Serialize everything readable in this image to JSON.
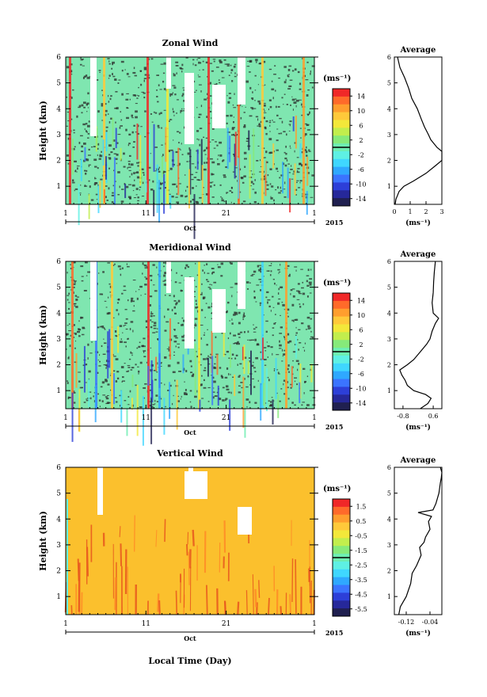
{
  "panels": [
    {
      "title": "Zonal Wind",
      "ylabel": "Height (km)",
      "yticks": [
        "1",
        "2",
        "3",
        "4",
        "5",
        "6"
      ],
      "xticks": [
        "1",
        "11",
        "21",
        "1"
      ],
      "month": "Oct",
      "year": "2015",
      "cbar_unit": "(ms⁻¹)",
      "cbar_ticks": [
        "14",
        "10",
        "6",
        "2",
        "-2",
        "-6",
        "-10",
        "-14"
      ],
      "avg_title": "Average",
      "avg_xticks": [
        "0",
        "1",
        "2",
        "3"
      ],
      "avg_xlabel": "(ms⁻¹)",
      "avg_yticks": [
        "1",
        "2",
        "3",
        "4",
        "5",
        "6"
      ],
      "xlabel": ""
    },
    {
      "title": "Meridional Wind",
      "ylabel": "Height (km)",
      "yticks": [
        "1",
        "2",
        "3",
        "4",
        "5",
        "6"
      ],
      "xticks": [
        "1",
        "11",
        "21",
        "1"
      ],
      "month": "Oct",
      "year": "2015",
      "cbar_unit": "(ms⁻¹)",
      "cbar_ticks": [
        "14",
        "10",
        "6",
        "2",
        "-2",
        "-6",
        "-10",
        "-14"
      ],
      "avg_title": "Average",
      "avg_xticks": [
        "-0.8",
        "0.6"
      ],
      "avg_xlabel": "(ms⁻¹)",
      "avg_yticks": [
        "1",
        "2",
        "3",
        "4",
        "5",
        "6"
      ],
      "xlabel": ""
    },
    {
      "title": "Vertical Wind",
      "ylabel": "Height (km)",
      "yticks": [
        "1",
        "2",
        "3",
        "4",
        "5",
        "6"
      ],
      "xticks": [
        "1",
        "11",
        "21",
        "1"
      ],
      "month": "Oct",
      "year": "2015",
      "cbar_unit": "(ms⁻¹)",
      "cbar_ticks": [
        "1.5",
        "0.5",
        "-0.5",
        "-1.5",
        "-2.5",
        "-3.5",
        "-4.5",
        "-5.5"
      ],
      "avg_title": "Average",
      "avg_xticks": [
        "-0.12",
        "-0.04"
      ],
      "avg_xlabel": "(ms⁻¹)",
      "avg_yticks": [
        "1",
        "2",
        "3",
        "4",
        "5",
        "6"
      ],
      "xlabel": "Local Time (Day)"
    }
  ],
  "colors": {
    "bands": [
      "#f02828",
      "#ff6a2a",
      "#ff9e2e",
      "#ffc93a",
      "#f3e83a",
      "#c2ee4d",
      "#86ea7a",
      "#6eeeb2",
      "#5ef0e4",
      "#3fd7ff",
      "#2fa8ff",
      "#3b74ff",
      "#2d3fd8",
      "#26289a",
      "#202050"
    ],
    "vert_bg": "#fbc02d",
    "speckle": "#2a2a2a"
  },
  "chart_data": [
    {
      "type": "heatmap",
      "title": "Zonal Wind",
      "ylabel": "Height (km)",
      "xaxis": "Oct 2015, days 1 to 31 (ticks 1, 11, 21, 1)",
      "ylim": [
        0.3,
        6
      ],
      "colorbar": {
        "unit": "ms-1",
        "range": [
          -16,
          16
        ],
        "ticks": [
          14,
          10,
          6,
          2,
          -2,
          -6,
          -10,
          -14
        ]
      },
      "average_profile": {
        "title": "Average",
        "xlim": [
          0,
          3
        ],
        "xticks": [
          0,
          1,
          2,
          3
        ],
        "height": [
          0.3,
          0.5,
          0.8,
          1.0,
          1.2,
          1.5,
          1.8,
          2.0,
          2.2,
          2.35,
          2.5,
          2.8,
          3.0,
          3.3,
          3.6,
          4.0,
          4.4,
          4.8,
          5.2,
          5.6,
          6.0
        ],
        "values": [
          0.05,
          0.1,
          0.3,
          0.6,
          1.2,
          2.0,
          2.6,
          3.0,
          3.15,
          3.05,
          2.7,
          2.3,
          2.15,
          1.9,
          1.7,
          1.45,
          1.1,
          0.9,
          0.65,
          0.35,
          0.2
        ]
      }
    },
    {
      "type": "heatmap",
      "title": "Meridional Wind",
      "ylabel": "Height (km)",
      "xaxis": "Oct 2015, days 1 to 31 (ticks 1, 11, 21, 1)",
      "ylim": [
        0.3,
        6
      ],
      "colorbar": {
        "unit": "ms-1",
        "range": [
          -16,
          16
        ],
        "ticks": [
          14,
          10,
          6,
          2,
          -2,
          -6,
          -10,
          -14
        ]
      },
      "average_profile": {
        "title": "Average",
        "xlim": [
          -1.2,
          1.0
        ],
        "xticks": [
          -0.8,
          0.6
        ],
        "height": [
          0.3,
          0.5,
          0.7,
          0.85,
          1.0,
          1.2,
          1.4,
          1.6,
          1.8,
          2.0,
          2.2,
          2.5,
          2.8,
          3.0,
          3.3,
          3.6,
          3.8,
          4.0,
          4.4,
          4.8,
          5.2,
          5.6,
          6.0
        ],
        "values": [
          0.0,
          0.35,
          0.5,
          0.25,
          -0.3,
          -0.6,
          -0.7,
          -0.85,
          -0.95,
          -0.6,
          -0.3,
          0.0,
          0.3,
          0.45,
          0.55,
          0.7,
          0.85,
          0.6,
          0.55,
          0.6,
          0.62,
          0.65,
          0.7
        ]
      }
    },
    {
      "type": "heatmap",
      "title": "Vertical Wind",
      "ylabel": "Height (km)",
      "xlabel": "Local Time (Day)",
      "xaxis": "Oct 2015, days 1 to 31 (ticks 1, 11, 21, 1)",
      "ylim": [
        0.3,
        6
      ],
      "colorbar": {
        "unit": "ms-1",
        "range": [
          -6,
          2
        ],
        "ticks": [
          1.5,
          0.5,
          -0.5,
          -1.5,
          -2.5,
          -3.5,
          -4.5,
          -5.5
        ]
      },
      "average_profile": {
        "title": "Average",
        "xlim": [
          -0.16,
          0.0
        ],
        "xticks": [
          -0.12,
          -0.04
        ],
        "height": [
          0.3,
          0.6,
          1.0,
          1.5,
          1.9,
          2.2,
          2.6,
          2.9,
          3.1,
          3.3,
          3.6,
          3.9,
          4.1,
          4.25,
          4.35,
          4.6,
          5.0,
          5.4,
          5.6,
          5.8,
          6.0
        ],
        "values": [
          -0.145,
          -0.14,
          -0.12,
          -0.105,
          -0.1,
          -0.085,
          -0.07,
          -0.075,
          -0.06,
          -0.055,
          -0.04,
          -0.045,
          -0.035,
          -0.08,
          -0.03,
          -0.02,
          -0.01,
          -0.005,
          -0.002,
          0.0,
          -0.005
        ]
      }
    }
  ]
}
